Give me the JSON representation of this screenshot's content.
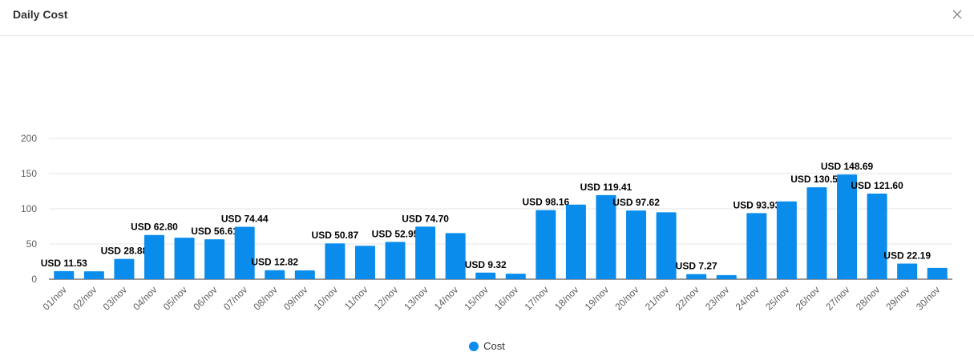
{
  "header": {
    "title": "Daily Cost"
  },
  "colors": {
    "bar": "#0a8ced",
    "grid": "#e5e5e5",
    "axis": "#323130"
  },
  "icons": {
    "close": "close-icon"
  },
  "chart_data": {
    "type": "bar",
    "title": "",
    "xlabel": "",
    "ylabel": "",
    "ylim": [
      0,
      200
    ],
    "yticks": [
      0,
      50,
      100,
      150,
      200
    ],
    "grid": true,
    "legend_position": "bottom-center",
    "categories": [
      "01/nov",
      "02/nov",
      "03/nov",
      "04/nov",
      "05/nov",
      "06/nov",
      "07/nov",
      "08/nov",
      "09/nov",
      "10/nov",
      "11/nov",
      "12/nov",
      "13/nov",
      "14/nov",
      "15/nov",
      "16/nov",
      "17/nov",
      "18/nov",
      "19/nov",
      "20/nov",
      "21/nov",
      "22/nov",
      "23/nov",
      "24/nov",
      "25/nov",
      "26/nov",
      "27/nov",
      "28/nov",
      "29/nov",
      "30/nov"
    ],
    "series": [
      {
        "name": "Cost",
        "values": [
          11.53,
          11.2,
          28.88,
          62.8,
          59.0,
          56.61,
          74.44,
          12.82,
          12.5,
          50.87,
          47.5,
          52.95,
          74.7,
          65.5,
          9.32,
          7.8,
          98.16,
          106.0,
          119.41,
          97.62,
          95.0,
          7.27,
          5.8,
          93.93,
          110.5,
          130.58,
          148.69,
          121.6,
          22.19,
          16.0
        ]
      }
    ],
    "data_labels": [
      "USD 11.53",
      null,
      "USD 28.88",
      "USD 62.80",
      null,
      "USD 56.61",
      "USD 74.44",
      "USD 12.82",
      null,
      "USD 50.87",
      null,
      "USD 52.95",
      "USD 74.70",
      null,
      "USD 9.32",
      null,
      "USD 98.16",
      null,
      "USD 119.41",
      "USD 97.62",
      null,
      "USD 7.27",
      null,
      "USD 93.93",
      null,
      "USD 130.58",
      "USD 148.69",
      "USD 121.60",
      "USD 22.19",
      null
    ]
  }
}
